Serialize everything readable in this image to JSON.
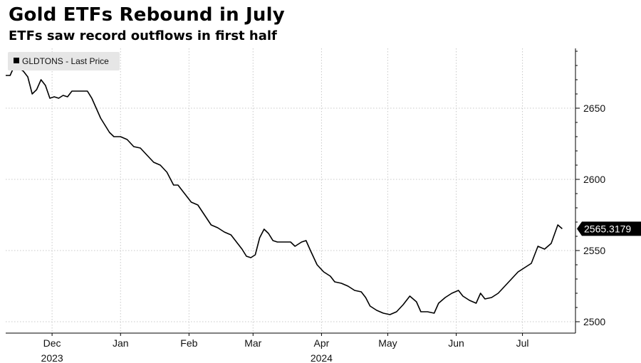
{
  "title": "Gold ETFs Rebound in July",
  "subtitle": "ETFs saw record outflows in first half",
  "chart_data": {
    "type": "line",
    "title": "Gold ETFs Rebound in July",
    "subtitle": "ETFs saw record outflows in first half",
    "legend": {
      "position": "top-left",
      "marker": "■",
      "label": "GLDTONS - Last Price"
    },
    "series": [
      {
        "name": "GLDTONS - Last Price",
        "color": "#000000",
        "last_value": "2565.3179",
        "points": [
          [
            "2023-11-24",
            2673
          ],
          [
            "2023-11-26",
            2673
          ],
          [
            "2023-11-28",
            2680
          ],
          [
            "2023-11-30",
            2678
          ],
          [
            "2023-12-02",
            2676
          ],
          [
            "2023-12-04",
            2672
          ],
          [
            "2023-12-06",
            2660
          ],
          [
            "2023-12-08",
            2663
          ],
          [
            "2023-12-10",
            2670
          ],
          [
            "2023-12-12",
            2666
          ],
          [
            "2023-12-14",
            2657
          ],
          [
            "2023-12-16",
            2658
          ],
          [
            "2023-12-18",
            2657
          ],
          [
            "2023-12-20",
            2659
          ],
          [
            "2023-12-22",
            2658
          ],
          [
            "2023-12-24",
            2662
          ],
          [
            "2023-12-26",
            2662
          ],
          [
            "2023-12-28",
            2662
          ],
          [
            "2023-12-31",
            2662
          ],
          [
            "2024-01-02",
            2657
          ],
          [
            "2024-01-04",
            2650
          ],
          [
            "2024-01-06",
            2643
          ],
          [
            "2024-01-08",
            2638
          ],
          [
            "2024-01-10",
            2633
          ],
          [
            "2024-01-12",
            2630
          ],
          [
            "2024-01-15",
            2630
          ],
          [
            "2024-01-18",
            2628
          ],
          [
            "2024-01-21",
            2623
          ],
          [
            "2024-01-24",
            2622
          ],
          [
            "2024-01-27",
            2617
          ],
          [
            "2024-01-30",
            2612
          ],
          [
            "2024-02-02",
            2610
          ],
          [
            "2024-02-05",
            2605
          ],
          [
            "2024-02-08",
            2596
          ],
          [
            "2024-02-10",
            2596
          ],
          [
            "2024-02-13",
            2590
          ],
          [
            "2024-02-16",
            2584
          ],
          [
            "2024-02-19",
            2582
          ],
          [
            "2024-02-22",
            2575
          ],
          [
            "2024-02-25",
            2568
          ],
          [
            "2024-02-28",
            2566
          ],
          [
            "2024-03-02",
            2563
          ],
          [
            "2024-03-05",
            2561
          ],
          [
            "2024-03-08",
            2555
          ],
          [
            "2024-03-10",
            2551
          ],
          [
            "2024-03-12",
            2546
          ],
          [
            "2024-03-14",
            2545
          ],
          [
            "2024-03-16",
            2547
          ],
          [
            "2024-03-18",
            2559
          ],
          [
            "2024-03-20",
            2565
          ],
          [
            "2024-03-22",
            2562
          ],
          [
            "2024-03-24",
            2557
          ],
          [
            "2024-03-26",
            2556
          ],
          [
            "2024-03-28",
            2556
          ],
          [
            "2024-04-01",
            2556
          ],
          [
            "2024-04-03",
            2553
          ],
          [
            "2024-04-06",
            2556
          ],
          [
            "2024-04-08",
            2557
          ],
          [
            "2024-04-10",
            2550
          ],
          [
            "2024-04-13",
            2540
          ],
          [
            "2024-04-16",
            2535
          ],
          [
            "2024-04-19",
            2532
          ],
          [
            "2024-04-21",
            2528
          ],
          [
            "2024-04-24",
            2527
          ],
          [
            "2024-04-27",
            2525
          ],
          [
            "2024-04-30",
            2522
          ],
          [
            "2024-05-03",
            2521
          ],
          [
            "2024-05-05",
            2517
          ],
          [
            "2024-05-07",
            2511
          ],
          [
            "2024-05-10",
            2508
          ],
          [
            "2024-05-13",
            2506
          ],
          [
            "2024-05-16",
            2505
          ],
          [
            "2024-05-19",
            2507
          ],
          [
            "2024-05-22",
            2512
          ],
          [
            "2024-05-25",
            2518
          ],
          [
            "2024-05-28",
            2514
          ],
          [
            "2024-05-30",
            2507
          ],
          [
            "2024-06-02",
            2507
          ],
          [
            "2024-06-05",
            2506
          ],
          [
            "2024-06-07",
            2513
          ],
          [
            "2024-06-10",
            2517
          ],
          [
            "2024-06-13",
            2520
          ],
          [
            "2024-06-16",
            2522
          ],
          [
            "2024-06-18",
            2518
          ],
          [
            "2024-06-21",
            2515
          ],
          [
            "2024-06-24",
            2513
          ],
          [
            "2024-06-26",
            2520
          ],
          [
            "2024-06-28",
            2516
          ],
          [
            "2024-07-01",
            2517
          ],
          [
            "2024-07-04",
            2520
          ],
          [
            "2024-07-07",
            2525
          ],
          [
            "2024-07-10",
            2530
          ],
          [
            "2024-07-13",
            2535
          ],
          [
            "2024-07-16",
            2538
          ],
          [
            "2024-07-19",
            2541
          ],
          [
            "2024-07-22",
            2553
          ],
          [
            "2024-07-25",
            2551
          ],
          [
            "2024-07-28",
            2555
          ],
          [
            "2024-07-31",
            2568
          ],
          [
            "2024-08-02",
            2565.3179
          ]
        ]
      }
    ],
    "x_axis": {
      "type": "date",
      "range": [
        "2023-11-24",
        "2024-08-08"
      ],
      "ticks": [
        {
          "label": "Dec",
          "date": "2023-12-15"
        },
        {
          "label": "Jan",
          "date": "2024-01-15"
        },
        {
          "label": "Feb",
          "date": "2024-02-15"
        },
        {
          "label": "Mar",
          "date": "2024-03-15"
        },
        {
          "label": "Apr",
          "date": "2024-04-15"
        },
        {
          "label": "May",
          "date": "2024-05-15"
        },
        {
          "label": "Jun",
          "date": "2024-06-15"
        },
        {
          "label": "Jul",
          "date": "2024-07-15"
        }
      ],
      "year_labels": [
        {
          "label": "2023",
          "date": "2023-12-15"
        },
        {
          "label": "2024",
          "date": "2024-04-15"
        }
      ]
    },
    "y_axis": {
      "position": "right",
      "range": [
        2492,
        2692
      ],
      "ticks": [
        2500,
        2550,
        2600,
        2650
      ]
    },
    "grid": {
      "vertical": true,
      "horizontal": true,
      "style": "dotted"
    },
    "colors": {
      "line": "#000000",
      "grid": "#c8c8c8",
      "label_bg": "#000000",
      "legend_bg": "#e6e6e6"
    }
  }
}
